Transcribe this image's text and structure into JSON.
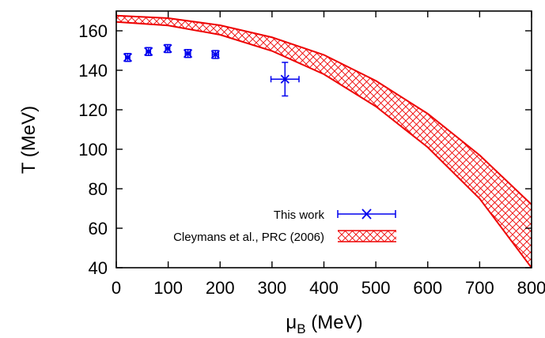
{
  "chart_data": {
    "type": "scatter",
    "xlabel_main": "μ",
    "xlabel_sub": "B",
    "xlabel_unit": " (MeV)",
    "ylabel": "T (MeV)",
    "xlim": [
      0,
      800
    ],
    "ylim": [
      40,
      170
    ],
    "x_ticks": [
      0,
      100,
      200,
      300,
      400,
      500,
      600,
      700,
      800
    ],
    "y_ticks": [
      40,
      60,
      80,
      100,
      120,
      140,
      160
    ],
    "grid": false,
    "legend_position": "bottom-right",
    "series": [
      {
        "name": "This work",
        "color": "#0000ee",
        "marker": "x",
        "points": [
          {
            "x": 22,
            "y": 146.5,
            "xerr": 4,
            "yerr": 2
          },
          {
            "x": 62,
            "y": 149.5,
            "xerr": 4,
            "yerr": 2
          },
          {
            "x": 99,
            "y": 151,
            "xerr": 4,
            "yerr": 2
          },
          {
            "x": 138,
            "y": 148.5,
            "xerr": 5,
            "yerr": 2
          },
          {
            "x": 191,
            "y": 148,
            "xerr": 6,
            "yerr": 2
          },
          {
            "x": 325,
            "y": 135.5,
            "xerr": 27,
            "yerr": 8.5
          }
        ]
      },
      {
        "name": "Cleymans et al., PRC (2006)",
        "color": "#ee0000",
        "kind": "band",
        "x": [
          0,
          100,
          200,
          300,
          400,
          500,
          600,
          700,
          800
        ],
        "upper": [
          167.7,
          166.4,
          162.8,
          156.7,
          147.8,
          134.7,
          118.0,
          97.0,
          72.0
        ],
        "lower": [
          164.5,
          162.7,
          158.0,
          149.8,
          138.0,
          121.7,
          101.0,
          75.0,
          40.0
        ]
      }
    ]
  }
}
